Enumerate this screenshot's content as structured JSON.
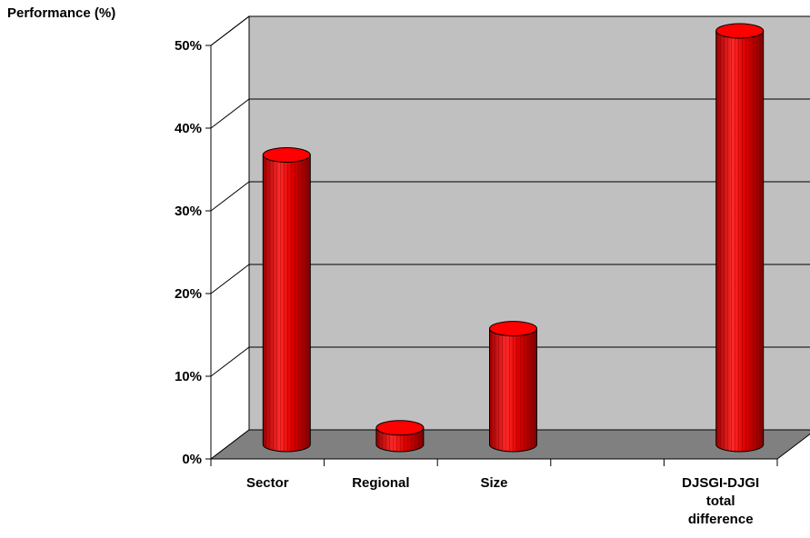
{
  "chart_data": {
    "type": "bar",
    "style": "3d-cylinder",
    "ylabel": "Performance (%)",
    "categories": [
      "Sector",
      "Regional",
      "Size",
      "",
      "DJSGI-DJGI total difference"
    ],
    "category_lines": [
      [
        "Sector"
      ],
      [
        "Regional"
      ],
      [
        "Size"
      ],
      [],
      [
        "DJSGI-DJGI",
        "total",
        "difference"
      ]
    ],
    "values": [
      35,
      2,
      14,
      null,
      50
    ],
    "ylim": [
      0,
      50
    ],
    "yticks": [
      0,
      10,
      20,
      30,
      40,
      50
    ],
    "ytick_labels": [
      "0%",
      "10%",
      "20%",
      "30%",
      "40%",
      "50%"
    ],
    "grid": true,
    "legend": "none"
  },
  "colors": {
    "bar": "#ff0000",
    "bar_dark": "#8b0000",
    "back_wall": "#c0c0c0",
    "floor": "#808080"
  }
}
